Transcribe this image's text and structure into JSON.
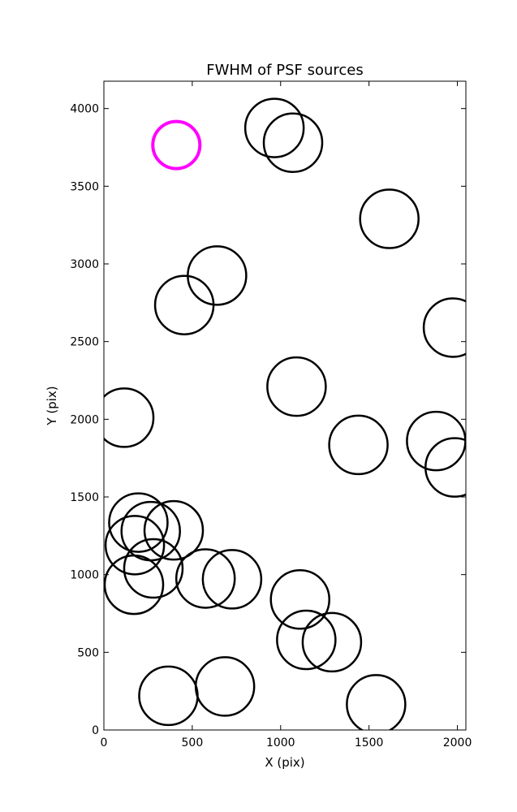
{
  "chart_data": {
    "type": "scatter",
    "title": "FWHM of PSF sources",
    "xlabel": "X (pix)",
    "ylabel": "Y (pix)",
    "xlim": [
      0,
      2048
    ],
    "ylim": [
      0,
      4176
    ],
    "xticks": [
      0,
      500,
      1000,
      1500,
      2000
    ],
    "yticks": [
      0,
      500,
      1000,
      1500,
      2000,
      2500,
      3000,
      3500,
      4000
    ],
    "grid": false,
    "marker": "open circle",
    "marker_color": "#000000",
    "highlight_color": "#ff00ff",
    "points": [
      {
        "x": 410,
        "y": 3765,
        "highlight": true
      },
      {
        "x": 965,
        "y": 3875,
        "highlight": false
      },
      {
        "x": 1070,
        "y": 3780,
        "highlight": false
      },
      {
        "x": 1615,
        "y": 3290,
        "highlight": false
      },
      {
        "x": 640,
        "y": 2925,
        "highlight": false
      },
      {
        "x": 455,
        "y": 2735,
        "highlight": false
      },
      {
        "x": 1975,
        "y": 2590,
        "highlight": false
      },
      {
        "x": 1090,
        "y": 2210,
        "highlight": false
      },
      {
        "x": 115,
        "y": 2010,
        "highlight": false
      },
      {
        "x": 1440,
        "y": 1835,
        "highlight": false
      },
      {
        "x": 1880,
        "y": 1860,
        "highlight": false
      },
      {
        "x": 1985,
        "y": 1690,
        "highlight": false
      },
      {
        "x": 195,
        "y": 1335,
        "highlight": false
      },
      {
        "x": 265,
        "y": 1280,
        "highlight": false
      },
      {
        "x": 395,
        "y": 1285,
        "highlight": false
      },
      {
        "x": 175,
        "y": 1190,
        "highlight": false
      },
      {
        "x": 280,
        "y": 1040,
        "highlight": false
      },
      {
        "x": 170,
        "y": 935,
        "highlight": false
      },
      {
        "x": 575,
        "y": 975,
        "highlight": false
      },
      {
        "x": 725,
        "y": 970,
        "highlight": false
      },
      {
        "x": 1110,
        "y": 840,
        "highlight": false
      },
      {
        "x": 1145,
        "y": 580,
        "highlight": false
      },
      {
        "x": 1290,
        "y": 565,
        "highlight": false
      },
      {
        "x": 365,
        "y": 220,
        "highlight": false
      },
      {
        "x": 685,
        "y": 280,
        "highlight": false
      },
      {
        "x": 1540,
        "y": 165,
        "highlight": false
      }
    ]
  }
}
